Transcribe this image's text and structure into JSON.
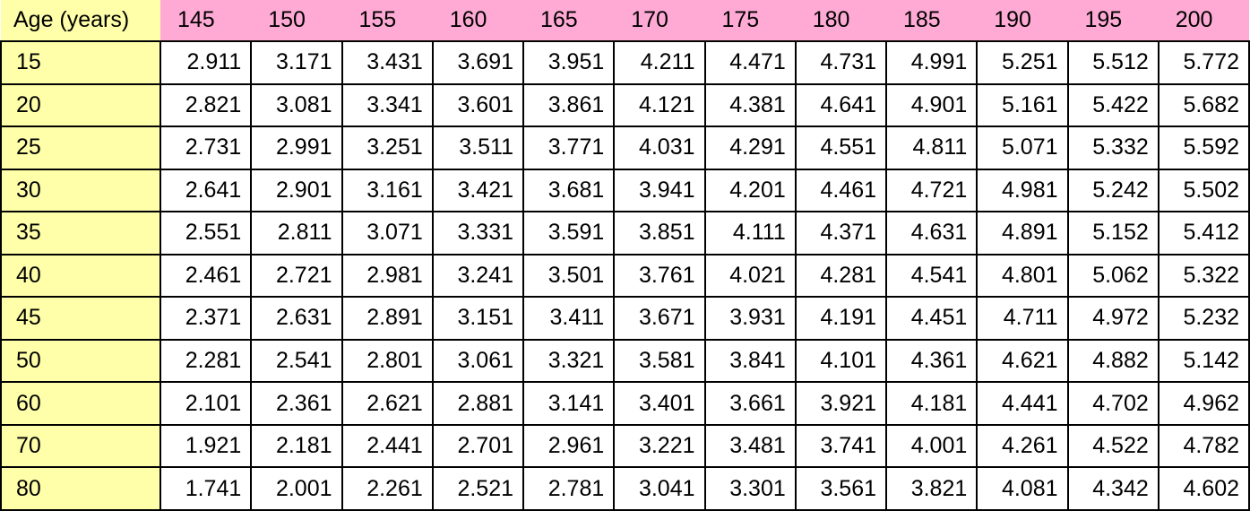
{
  "colors": {
    "header_bg": "#ffaad4",
    "age_col_bg": "#ffffaa",
    "cell_bg": "#ffffff",
    "border": "#000000",
    "text": "#000000"
  },
  "chart_data": {
    "type": "table",
    "row_header_label": "Age (years)",
    "columns": [
      "145",
      "150",
      "155",
      "160",
      "165",
      "170",
      "175",
      "180",
      "185",
      "190",
      "195",
      "200"
    ],
    "rows": [
      {
        "age": "15",
        "values": [
          "2.911",
          "3.171",
          "3.431",
          "3.691",
          "3.951",
          "4.211",
          "4.471",
          "4.731",
          "4.991",
          "5.251",
          "5.512",
          "5.772"
        ]
      },
      {
        "age": "20",
        "values": [
          "2.821",
          "3.081",
          "3.341",
          "3.601",
          "3.861",
          "4.121",
          "4.381",
          "4.641",
          "4.901",
          "5.161",
          "5.422",
          "5.682"
        ]
      },
      {
        "age": "25",
        "values": [
          "2.731",
          "2.991",
          "3.251",
          "3.511",
          "3.771",
          "4.031",
          "4.291",
          "4.551",
          "4.811",
          "5.071",
          "5.332",
          "5.592"
        ]
      },
      {
        "age": "30",
        "values": [
          "2.641",
          "2.901",
          "3.161",
          "3.421",
          "3.681",
          "3.941",
          "4.201",
          "4.461",
          "4.721",
          "4.981",
          "5.242",
          "5.502"
        ]
      },
      {
        "age": "35",
        "values": [
          "2.551",
          "2.811",
          "3.071",
          "3.331",
          "3.591",
          "3.851",
          "4.111",
          "4.371",
          "4.631",
          "4.891",
          "5.152",
          "5.412"
        ]
      },
      {
        "age": "40",
        "values": [
          "2.461",
          "2.721",
          "2.981",
          "3.241",
          "3.501",
          "3.761",
          "4.021",
          "4.281",
          "4.541",
          "4.801",
          "5.062",
          "5.322"
        ]
      },
      {
        "age": "45",
        "values": [
          "2.371",
          "2.631",
          "2.891",
          "3.151",
          "3.411",
          "3.671",
          "3.931",
          "4.191",
          "4.451",
          "4.711",
          "4.972",
          "5.232"
        ]
      },
      {
        "age": "50",
        "values": [
          "2.281",
          "2.541",
          "2.801",
          "3.061",
          "3.321",
          "3.581",
          "3.841",
          "4.101",
          "4.361",
          "4.621",
          "4.882",
          "5.142"
        ]
      },
      {
        "age": "60",
        "values": [
          "2.101",
          "2.361",
          "2.621",
          "2.881",
          "3.141",
          "3.401",
          "3.661",
          "3.921",
          "4.181",
          "4.441",
          "4.702",
          "4.962"
        ]
      },
      {
        "age": "70",
        "values": [
          "1.921",
          "2.181",
          "2.441",
          "2.701",
          "2.961",
          "3.221",
          "3.481",
          "3.741",
          "4.001",
          "4.261",
          "4.522",
          "4.782"
        ]
      },
      {
        "age": "80",
        "values": [
          "1.741",
          "2.001",
          "2.261",
          "2.521",
          "2.781",
          "3.041",
          "3.301",
          "3.561",
          "3.821",
          "4.081",
          "4.342",
          "4.602"
        ]
      }
    ]
  }
}
